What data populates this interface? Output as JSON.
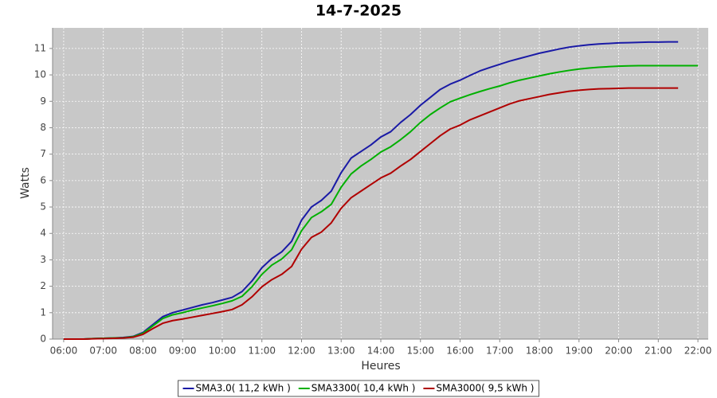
{
  "chart_data": {
    "type": "line",
    "title": "14-7-2025",
    "x_label": "Heures",
    "y_label": "Watts",
    "x": [
      6.0,
      6.25,
      6.5,
      6.75,
      7.0,
      7.25,
      7.5,
      7.75,
      8.0,
      8.25,
      8.5,
      8.75,
      9.0,
      9.25,
      9.5,
      9.75,
      10.0,
      10.25,
      10.5,
      10.75,
      11.0,
      11.25,
      11.5,
      11.75,
      12.0,
      12.25,
      12.5,
      12.75,
      13.0,
      13.25,
      13.5,
      13.75,
      14.0,
      14.25,
      14.5,
      14.75,
      15.0,
      15.25,
      15.5,
      15.75,
      16.0,
      16.25,
      16.5,
      16.75,
      17.0,
      17.25,
      17.5,
      17.75,
      18.0,
      18.25,
      18.5,
      18.75,
      19.0,
      19.25,
      19.5,
      19.75,
      20.0,
      20.25,
      20.5,
      20.75,
      21.0,
      21.25,
      21.5,
      21.75,
      22.0
    ],
    "series": [
      {
        "name": "SMA3.0( 11,2 kWh )",
        "color": "#1a1aa6",
        "values": [
          0,
          0,
          0,
          0.02,
          0.03,
          0.04,
          0.06,
          0.1,
          0.25,
          0.55,
          0.85,
          1.0,
          1.1,
          1.2,
          1.3,
          1.38,
          1.48,
          1.58,
          1.8,
          2.2,
          2.7,
          3.05,
          3.3,
          3.7,
          4.5,
          5.0,
          5.25,
          5.6,
          6.3,
          6.85,
          7.1,
          7.35,
          7.65,
          7.85,
          8.2,
          8.5,
          8.85,
          9.15,
          9.45,
          9.65,
          9.8,
          9.98,
          10.15,
          10.28,
          10.4,
          10.52,
          10.62,
          10.72,
          10.82,
          10.9,
          10.98,
          11.05,
          11.1,
          11.14,
          11.17,
          11.19,
          11.21,
          11.22,
          11.23,
          11.24,
          11.24,
          11.25,
          11.25,
          null,
          null
        ]
      },
      {
        "name": "SMA3300( 10,4 kWh )",
        "color": "#00b000",
        "values": [
          0,
          0,
          0,
          0.02,
          0.03,
          0.04,
          0.05,
          0.09,
          0.22,
          0.5,
          0.78,
          0.92,
          1.0,
          1.1,
          1.18,
          1.26,
          1.35,
          1.45,
          1.62,
          1.98,
          2.45,
          2.8,
          3.03,
          3.38,
          4.1,
          4.6,
          4.82,
          5.1,
          5.75,
          6.25,
          6.55,
          6.8,
          7.08,
          7.28,
          7.55,
          7.85,
          8.2,
          8.5,
          8.75,
          8.98,
          9.12,
          9.25,
          9.37,
          9.48,
          9.58,
          9.7,
          9.8,
          9.88,
          9.96,
          10.04,
          10.11,
          10.17,
          10.22,
          10.26,
          10.29,
          10.31,
          10.33,
          10.34,
          10.35,
          10.35,
          10.35,
          10.35,
          10.35,
          10.35,
          10.35
        ]
      },
      {
        "name": "SMA3000( 9,5 kWh )",
        "color": "#b00000",
        "values": [
          0,
          0,
          0,
          0.01,
          0.02,
          0.03,
          0.04,
          0.07,
          0.18,
          0.4,
          0.6,
          0.7,
          0.76,
          0.83,
          0.9,
          0.97,
          1.04,
          1.12,
          1.3,
          1.6,
          1.98,
          2.25,
          2.45,
          2.75,
          3.4,
          3.85,
          4.05,
          4.4,
          4.95,
          5.35,
          5.6,
          5.85,
          6.1,
          6.28,
          6.55,
          6.8,
          7.1,
          7.4,
          7.7,
          7.95,
          8.1,
          8.3,
          8.45,
          8.6,
          8.75,
          8.9,
          9.02,
          9.1,
          9.18,
          9.26,
          9.32,
          9.38,
          9.42,
          9.45,
          9.47,
          9.48,
          9.49,
          9.5,
          9.5,
          9.5,
          9.5,
          9.5,
          9.5,
          null,
          null
        ]
      }
    ],
    "xlim": [
      5.72,
      22.26
    ],
    "ylim": [
      0,
      11.78
    ],
    "xticks": [
      {
        "value": 6,
        "label": "06:00"
      },
      {
        "value": 7,
        "label": "07:00"
      },
      {
        "value": 8,
        "label": "08:00"
      },
      {
        "value": 9,
        "label": "09:00"
      },
      {
        "value": 10,
        "label": "10:00"
      },
      {
        "value": 11,
        "label": "11:00"
      },
      {
        "value": 12,
        "label": "12:00"
      },
      {
        "value": 13,
        "label": "13:00"
      },
      {
        "value": 14,
        "label": "14:00"
      },
      {
        "value": 15,
        "label": "15:00"
      },
      {
        "value": 16,
        "label": "16:00"
      },
      {
        "value": 17,
        "label": "17:00"
      },
      {
        "value": 18,
        "label": "18:00"
      },
      {
        "value": 19,
        "label": "19:00"
      },
      {
        "value": 20,
        "label": "20:00"
      },
      {
        "value": 21,
        "label": "21:00"
      },
      {
        "value": 22,
        "label": "22:00"
      }
    ],
    "yticks": [
      0,
      1,
      2,
      3,
      4,
      5,
      6,
      7,
      8,
      9,
      10,
      11
    ],
    "grid": true,
    "legend": "bottom"
  }
}
